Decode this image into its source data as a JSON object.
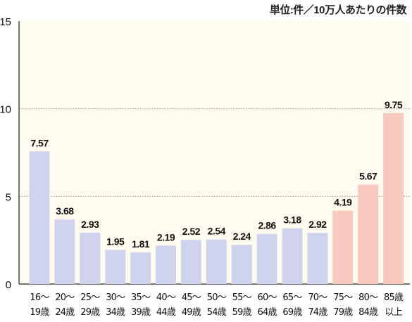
{
  "unit_note": "単位:件／10万人あたりの件数",
  "colors": {
    "plot_bg": "#fffbef",
    "bar_normal": "#d0d3ee",
    "bar_elderly": "#f8cabd",
    "grid": "#8a8a8a",
    "text": "#111111"
  },
  "chart_data": {
    "type": "bar",
    "categories": [
      [
        "16～",
        "19歳"
      ],
      [
        "20～",
        "24歳"
      ],
      [
        "25～",
        "29歳"
      ],
      [
        "30～",
        "34歳"
      ],
      [
        "35～",
        "39歳"
      ],
      [
        "40～",
        "44歳"
      ],
      [
        "45～",
        "49歳"
      ],
      [
        "50～",
        "54歳"
      ],
      [
        "55～",
        "59歳"
      ],
      [
        "60～",
        "64歳"
      ],
      [
        "65～",
        "69歳"
      ],
      [
        "70～",
        "74歳"
      ],
      [
        "75～",
        "79歳"
      ],
      [
        "80～",
        "84歳"
      ],
      [
        "85歳",
        "以上"
      ]
    ],
    "values": [
      7.57,
      3.68,
      2.93,
      1.95,
      1.81,
      2.19,
      2.52,
      2.54,
      2.24,
      2.86,
      3.18,
      2.92,
      4.19,
      5.67,
      9.75
    ],
    "value_labels": [
      "7.57",
      "3.68",
      "2.93",
      "1.95",
      "1.81",
      "2.19",
      "2.52",
      "2.54",
      "2.24",
      "2.86",
      "3.18",
      "2.92",
      "4.19",
      "5.67",
      "9.75"
    ],
    "highlight": [
      "normal",
      "normal",
      "normal",
      "normal",
      "normal",
      "normal",
      "normal",
      "normal",
      "normal",
      "normal",
      "normal",
      "normal",
      "elderly",
      "elderly",
      "elderly"
    ],
    "yticks": [
      "0",
      "5",
      "10",
      "15"
    ],
    "ylim": [
      0,
      15
    ],
    "grid": true
  }
}
